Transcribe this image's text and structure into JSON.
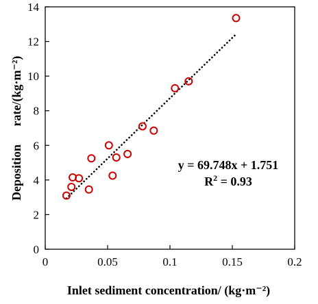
{
  "chart_data": {
    "type": "scatter",
    "xlabel": "Inlet sediment concentration/ (kg·m⁻²)",
    "ylabel_line1": "Deposition",
    "ylabel_line2": "rate/(kg·m⁻²)",
    "xlim": [
      0,
      0.2
    ],
    "ylim": [
      0,
      14
    ],
    "x_ticks": [
      0,
      0.05,
      0.1,
      0.15,
      0.2
    ],
    "x_tick_labels": [
      "0",
      "0.05",
      "0.1",
      "0.15",
      "0.2"
    ],
    "y_ticks": [
      0,
      2,
      4,
      6,
      8,
      10,
      12,
      14
    ],
    "y_tick_labels": [
      "0",
      "2",
      "4",
      "6",
      "8",
      "10",
      "12",
      "14"
    ],
    "grid": false,
    "marker": "open-circle",
    "marker_color": "#cc0000",
    "points": [
      {
        "x": 0.017,
        "y": 3.1
      },
      {
        "x": 0.021,
        "y": 3.6
      },
      {
        "x": 0.022,
        "y": 4.15
      },
      {
        "x": 0.027,
        "y": 4.1
      },
      {
        "x": 0.035,
        "y": 3.45
      },
      {
        "x": 0.037,
        "y": 5.25
      },
      {
        "x": 0.051,
        "y": 6.0
      },
      {
        "x": 0.054,
        "y": 4.25
      },
      {
        "x": 0.057,
        "y": 5.3
      },
      {
        "x": 0.066,
        "y": 5.5
      },
      {
        "x": 0.078,
        "y": 7.1
      },
      {
        "x": 0.087,
        "y": 6.85
      },
      {
        "x": 0.104,
        "y": 9.3
      },
      {
        "x": 0.115,
        "y": 9.7
      },
      {
        "x": 0.153,
        "y": 13.35
      }
    ],
    "trendline": {
      "style": "dotted",
      "color": "#000000",
      "slope": 69.748,
      "intercept": 1.751,
      "x_range": [
        0.017,
        0.153
      ]
    },
    "annotation": {
      "equation": "y = 69.748x + 1.751",
      "r2_prefix": "R",
      "r2_sup": "2",
      "r2_suffix": " = 0.93"
    }
  }
}
